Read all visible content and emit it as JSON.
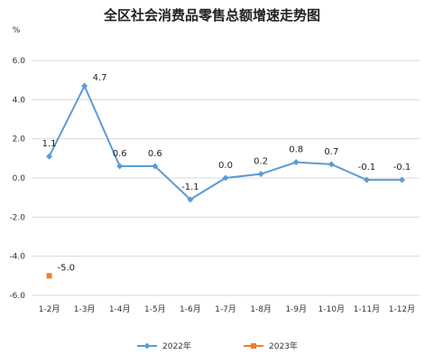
{
  "chart_data": {
    "type": "line",
    "title": "全区社会消费品零售总额增速走势图",
    "ylabel": "%",
    "xlabel": "",
    "ylim": [
      -6.0,
      6.0
    ],
    "y_ticks": [
      6.0,
      4.0,
      2.0,
      0.0,
      -2.0,
      -4.0,
      -6.0
    ],
    "y_tick_labels": [
      "6.0",
      "4.0",
      "2.0",
      "0.0",
      "-2.0",
      "-4.0",
      "-6.0"
    ],
    "categories": [
      "1-2月",
      "1-3月",
      "1-4月",
      "1-5月",
      "1-6月",
      "1-7月",
      "1-8月",
      "1-9月",
      "1-10月",
      "1-11月",
      "1-12月"
    ],
    "grid": true,
    "legend_position": "bottom",
    "series": [
      {
        "name": "2022年",
        "color": "#5B9BD5",
        "marker": "diamond",
        "values": [
          1.1,
          4.7,
          0.6,
          0.6,
          -1.1,
          0.0,
          0.2,
          0.8,
          0.7,
          -0.1,
          -0.1
        ],
        "labels": [
          "1.1",
          "4.7",
          "0.6",
          "0.6",
          "-1.1",
          "0.0",
          "0.2",
          "0.8",
          "0.7",
          "-0.1",
          "-0.1"
        ]
      },
      {
        "name": "2023年",
        "color": "#ED7D31",
        "marker": "square",
        "values": [
          -5.0,
          null,
          null,
          null,
          null,
          null,
          null,
          null,
          null,
          null,
          null
        ],
        "labels": [
          "-5.0",
          null,
          null,
          null,
          null,
          null,
          null,
          null,
          null,
          null,
          null
        ]
      }
    ]
  }
}
